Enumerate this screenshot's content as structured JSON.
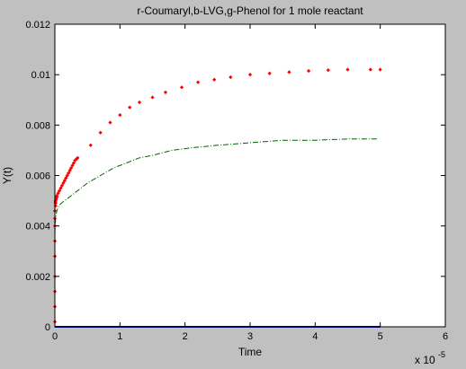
{
  "chart_data": {
    "type": "scatter",
    "title": "r-Coumaryl,b-LVG,g-Phenol for 1 mole reactant",
    "xlabel": "Time",
    "ylabel": "Y(t)",
    "x_exponent_label": "x 10",
    "x_exponent_power": "-5",
    "xlim": [
      0,
      6
    ],
    "ylim": [
      0,
      0.012
    ],
    "xticks": [
      0,
      1,
      2,
      3,
      4,
      5,
      6
    ],
    "xtick_labels": [
      "0",
      "1",
      "2",
      "3",
      "4",
      "5",
      "6"
    ],
    "yticks": [
      0,
      0.002,
      0.004,
      0.006,
      0.008,
      0.01,
      0.012
    ],
    "ytick_labels": [
      "0",
      "0.002",
      "0.004",
      "0.006",
      "0.008",
      "0.01",
      "0.012"
    ],
    "grid": false,
    "background_color": "#c0c0c0",
    "axes_color": "#ffffff",
    "series": [
      {
        "style": "dotted-markers",
        "color": "#ff0000",
        "x": [
          0,
          0,
          0,
          0,
          0,
          0,
          0,
          0,
          0,
          0.01,
          0.01,
          0.01,
          0.01,
          0.02,
          0.02,
          0.02,
          0.03,
          0.03,
          0.05,
          0.07,
          0.09,
          0.11,
          0.13,
          0.15,
          0.17,
          0.19,
          0.21,
          0.23,
          0.25,
          0.27,
          0.29,
          0.31,
          0.33,
          0.35,
          0.55,
          0.7,
          0.85,
          1.0,
          1.15,
          1.3,
          1.5,
          1.7,
          1.95,
          2.2,
          2.45,
          2.7,
          3.0,
          3.3,
          3.6,
          3.9,
          4.2,
          4.5,
          4.85,
          5.0
        ],
        "y": [
          0.0002,
          0.0008,
          0.0014,
          0.002,
          0.0028,
          0.0034,
          0.004,
          0.0043,
          0.0046,
          0.0048,
          0.0049,
          0.00495,
          0.005,
          0.00505,
          0.0051,
          0.00512,
          0.00515,
          0.0052,
          0.0053,
          0.0054,
          0.0055,
          0.0056,
          0.0057,
          0.0058,
          0.0059,
          0.006,
          0.0061,
          0.0062,
          0.0063,
          0.0064,
          0.0065,
          0.0066,
          0.00665,
          0.0067,
          0.0072,
          0.0077,
          0.0081,
          0.0084,
          0.0087,
          0.0089,
          0.0091,
          0.0093,
          0.0095,
          0.0097,
          0.0098,
          0.0099,
          0.01,
          0.01005,
          0.0101,
          0.01015,
          0.01018,
          0.0102,
          0.0102,
          0.0102
        ]
      },
      {
        "style": "dash-dot",
        "color": "#006400",
        "x": [
          0,
          0.01,
          0.03,
          0.06,
          0.1,
          0.15,
          0.2,
          0.3,
          0.4,
          0.5,
          0.7,
          0.9,
          1.1,
          1.3,
          1.5,
          1.8,
          2.1,
          2.5,
          3.0,
          3.5,
          4.0,
          4.5,
          4.95
        ],
        "y": [
          0.0037,
          0.0043,
          0.0046,
          0.0048,
          0.0049,
          0.005,
          0.0051,
          0.0053,
          0.0055,
          0.0057,
          0.006,
          0.0063,
          0.0065,
          0.0067,
          0.0068,
          0.007,
          0.0071,
          0.0072,
          0.0073,
          0.0074,
          0.0074,
          0.00745,
          0.00745
        ]
      },
      {
        "style": "solid",
        "color": "#0000cc",
        "x": [
          0,
          5
        ],
        "y": [
          0,
          0
        ]
      }
    ]
  }
}
